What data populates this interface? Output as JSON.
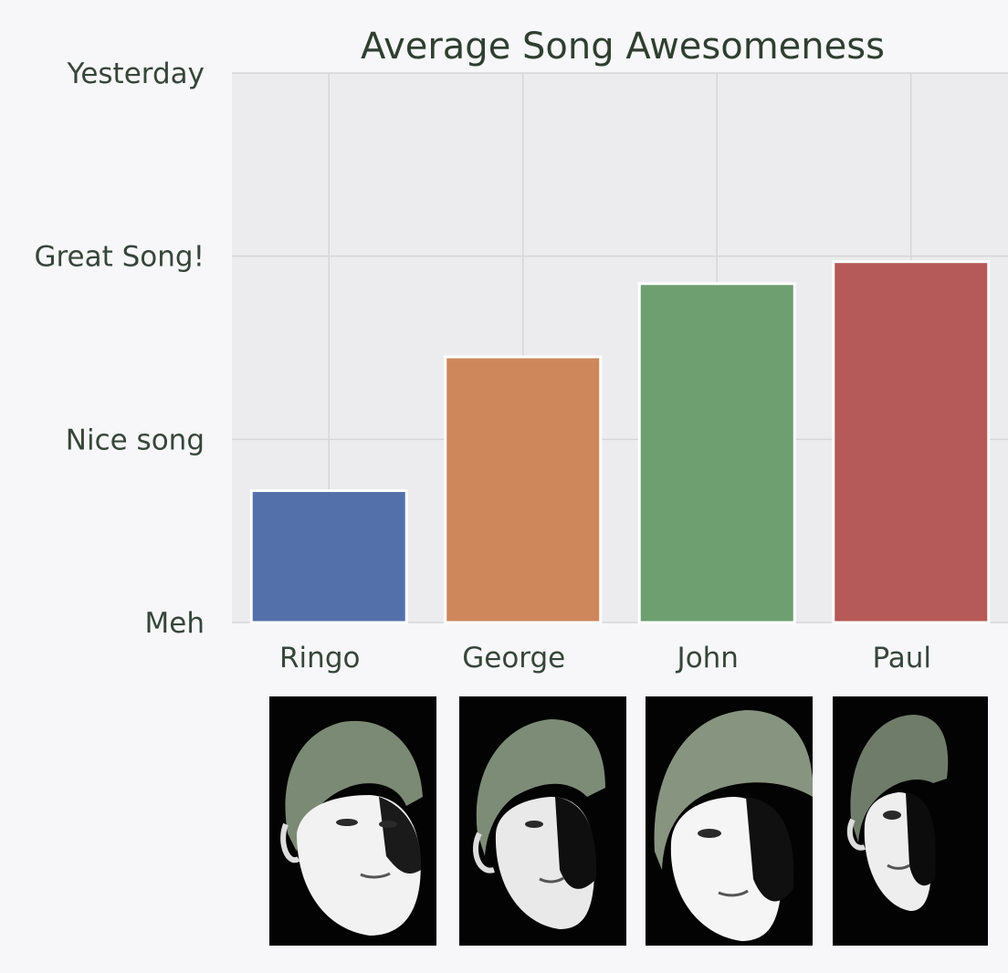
{
  "chart_data": {
    "type": "bar",
    "title": "Average Song Awesomeness",
    "categories": [
      "Ringo",
      "George",
      "John",
      "Paul"
    ],
    "values": [
      0.72,
      1.45,
      1.85,
      1.97
    ],
    "colors": [
      "#5470ab",
      "#cd875b",
      "#6d9f70",
      "#b55a58"
    ],
    "ylim": [
      0,
      3
    ],
    "yticks": [
      {
        "value": 0,
        "label": "Meh"
      },
      {
        "value": 1,
        "label": "Nice song"
      },
      {
        "value": 2,
        "label": "Great Song!"
      },
      {
        "value": 3,
        "label": "Yesterday"
      }
    ],
    "grid": true
  },
  "portrait_icons": [
    "ringo-portrait-icon",
    "george-portrait-icon",
    "john-portrait-icon",
    "paul-portrait-icon"
  ]
}
